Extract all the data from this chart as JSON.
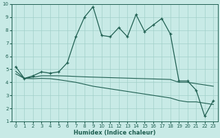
{
  "xlabel": "Humidex (Indice chaleur)",
  "background_color": "#c8eae6",
  "grid_color": "#a0cfc8",
  "line_color": "#1e5e50",
  "xlim": [
    -0.5,
    23.5
  ],
  "ylim": [
    1,
    10
  ],
  "xticks": [
    0,
    1,
    2,
    3,
    4,
    5,
    6,
    7,
    8,
    9,
    10,
    11,
    12,
    13,
    14,
    15,
    16,
    17,
    18,
    19,
    20,
    21,
    22,
    23
  ],
  "yticks": [
    1,
    2,
    3,
    4,
    5,
    6,
    7,
    8,
    9,
    10
  ],
  "series1_y": [
    5.2,
    4.3,
    4.5,
    4.8,
    4.7,
    4.8,
    5.5,
    7.5,
    9.0,
    9.8,
    7.6,
    7.5,
    8.2,
    7.5,
    9.2,
    7.9,
    8.4,
    8.9,
    7.7,
    4.1,
    4.1,
    3.4,
    1.4,
    2.6
  ],
  "series2_y": [
    4.85,
    4.3,
    4.4,
    4.5,
    4.5,
    4.5,
    4.48,
    4.45,
    4.42,
    4.4,
    4.38,
    4.36,
    4.34,
    4.32,
    4.3,
    4.28,
    4.26,
    4.24,
    4.22,
    4.0,
    4.0,
    3.9,
    3.8,
    3.7
  ],
  "series3_y": [
    4.65,
    4.3,
    4.28,
    4.3,
    4.28,
    4.2,
    4.1,
    4.0,
    3.85,
    3.7,
    3.6,
    3.5,
    3.4,
    3.3,
    3.2,
    3.1,
    3.0,
    2.9,
    2.8,
    2.6,
    2.5,
    2.5,
    2.4,
    2.3
  ],
  "xlabel_fontsize": 6,
  "tick_fontsize": 5,
  "linewidth_main": 0.9,
  "linewidth_flat": 0.8
}
